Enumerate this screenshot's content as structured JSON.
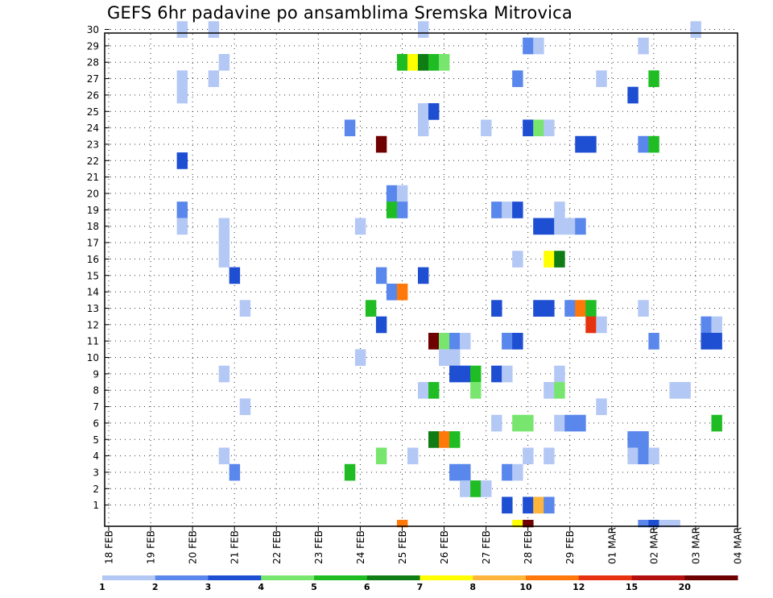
{
  "title": "GEFS 6hr padavine po ansamblima Sremska Mitrovica",
  "chart_data": {
    "type": "heatmap",
    "title": "GEFS 6hr padavine po ansamblima Sremska Mitrovica",
    "xlabel": "",
    "ylabel": "",
    "x_ticks": [
      "18 FEB",
      "19 FEB",
      "20 FEB",
      "21 FEB",
      "22 FEB",
      "23 FEB",
      "24 FEB",
      "25 FEB",
      "26 FEB",
      "27 FEB",
      "28 FEB",
      "29 FEB",
      "01 MAR",
      "02 MAR",
      "03 MAR",
      "04 MAR"
    ],
    "x_range_days": [
      0,
      15
    ],
    "y_ticks": [
      1,
      2,
      3,
      4,
      5,
      6,
      7,
      8,
      9,
      10,
      11,
      12,
      13,
      14,
      15,
      16,
      17,
      18,
      19,
      20,
      21,
      22,
      23,
      24,
      25,
      26,
      27,
      28,
      29,
      30
    ],
    "ylim": [
      0,
      30
    ],
    "grid": true,
    "colorbar": {
      "labels": [
        "1",
        "2",
        "3",
        "4",
        "5",
        "6",
        "7",
        "8",
        "10",
        "12",
        "15",
        "20"
      ],
      "colors": [
        "#b4c8f5",
        "#5a87eb",
        "#1e4ed2",
        "#78e66e",
        "#1fbd23",
        "#0f7d14",
        "#ffff00",
        "#ffb43c",
        "#ff780a",
        "#e6320f",
        "#b40f0f",
        "#6e0000"
      ]
    },
    "cells": [
      {
        "date": "19 FEB 18z",
        "member": 30,
        "precip": 1
      },
      {
        "date": "20 FEB 12z",
        "member": 30,
        "precip": 1
      },
      {
        "date": "25 FEB 12z",
        "member": 30,
        "precip": 1
      },
      {
        "date": "03 MAR 00z",
        "member": 30,
        "precip": 1
      },
      {
        "date": "28 FEB 00z",
        "member": 29,
        "precip": 2
      },
      {
        "date": "28 FEB 06z",
        "member": 29,
        "precip": 1
      },
      {
        "date": "01 MAR 18z",
        "member": 29,
        "precip": 1
      },
      {
        "date": "20 FEB 18z",
        "member": 28,
        "precip": 1
      },
      {
        "date": "25 FEB 00z",
        "member": 28,
        "precip": 5
      },
      {
        "date": "25 FEB 06z",
        "member": 28,
        "precip": 7
      },
      {
        "date": "25 FEB 12z",
        "member": 28,
        "precip": 6
      },
      {
        "date": "25 FEB 18z",
        "member": 28,
        "precip": 5
      },
      {
        "date": "26 FEB 00z",
        "member": 28,
        "precip": 4
      },
      {
        "date": "19 FEB 18z",
        "member": 27,
        "precip": 1
      },
      {
        "date": "20 FEB 12z",
        "member": 27,
        "precip": 1
      },
      {
        "date": "27 FEB 18z",
        "member": 27,
        "precip": 2
      },
      {
        "date": "29 FEB 18z",
        "member": 27,
        "precip": 1
      },
      {
        "date": "02 MAR 00z",
        "member": 27,
        "precip": 5
      },
      {
        "date": "19 FEB 18z",
        "member": 26,
        "precip": 1
      },
      {
        "date": "01 MAR 12z",
        "member": 26,
        "precip": 3
      },
      {
        "date": "25 FEB 12z",
        "member": 25,
        "precip": 1
      },
      {
        "date": "25 FEB 18z",
        "member": 25,
        "precip": 3
      },
      {
        "date": "23 FEB 18z",
        "member": 24,
        "precip": 2
      },
      {
        "date": "25 FEB 12z",
        "member": 24,
        "precip": 1
      },
      {
        "date": "27 FEB 00z",
        "member": 24,
        "precip": 1
      },
      {
        "date": "28 FEB 00z",
        "member": 24,
        "precip": 3
      },
      {
        "date": "28 FEB 06z",
        "member": 24,
        "precip": 4
      },
      {
        "date": "28 FEB 12z",
        "member": 24,
        "precip": 1
      },
      {
        "date": "24 FEB 12z",
        "member": 23,
        "precip": 20
      },
      {
        "date": "29 FEB 06z",
        "member": 23,
        "precip": 3
      },
      {
        "date": "29 FEB 12z",
        "member": 23,
        "precip": 3
      },
      {
        "date": "01 MAR 18z",
        "member": 23,
        "precip": 2
      },
      {
        "date": "02 MAR 00z",
        "member": 23,
        "precip": 5
      },
      {
        "date": "19 FEB 18z",
        "member": 22,
        "precip": 3
      },
      {
        "date": "24 FEB 18z",
        "member": 20,
        "precip": 2
      },
      {
        "date": "25 FEB 00z",
        "member": 20,
        "precip": 1
      },
      {
        "date": "19 FEB 18z",
        "member": 19,
        "precip": 2
      },
      {
        "date": "24 FEB 18z",
        "member": 19,
        "precip": 5
      },
      {
        "date": "25 FEB 00z",
        "member": 19,
        "precip": 2
      },
      {
        "date": "27 FEB 06z",
        "member": 19,
        "precip": 2
      },
      {
        "date": "27 FEB 12z",
        "member": 19,
        "precip": 1
      },
      {
        "date": "27 FEB 18z",
        "member": 19,
        "precip": 3
      },
      {
        "date": "28 FEB 18z",
        "member": 19,
        "precip": 1
      },
      {
        "date": "19 FEB 18z",
        "member": 18,
        "precip": 1
      },
      {
        "date": "20 FEB 18z",
        "member": 18,
        "precip": 1
      },
      {
        "date": "24 FEB 00z",
        "member": 18,
        "precip": 1
      },
      {
        "date": "28 FEB 06z",
        "member": 18,
        "precip": 3
      },
      {
        "date": "28 FEB 12z",
        "member": 18,
        "precip": 3
      },
      {
        "date": "28 FEB 18z",
        "member": 18,
        "precip": 1
      },
      {
        "date": "29 FEB 00z",
        "member": 18,
        "precip": 1
      },
      {
        "date": "29 FEB 06z",
        "member": 18,
        "precip": 2
      },
      {
        "date": "20 FEB 18z",
        "member": 17,
        "precip": 1
      },
      {
        "date": "20 FEB 18z",
        "member": 16,
        "precip": 1
      },
      {
        "date": "27 FEB 18z",
        "member": 16,
        "precip": 1
      },
      {
        "date": "28 FEB 12z",
        "member": 16,
        "precip": 7
      },
      {
        "date": "28 FEB 18z",
        "member": 16,
        "precip": 6
      },
      {
        "date": "21 FEB 00z",
        "member": 15,
        "precip": 3
      },
      {
        "date": "24 FEB 12z",
        "member": 15,
        "precip": 2
      },
      {
        "date": "25 FEB 12z",
        "member": 15,
        "precip": 3
      },
      {
        "date": "24 FEB 18z",
        "member": 14,
        "precip": 2
      },
      {
        "date": "25 FEB 00z",
        "member": 14,
        "precip": 10
      },
      {
        "date": "21 FEB 06z",
        "member": 13,
        "precip": 1
      },
      {
        "date": "24 FEB 06z",
        "member": 13,
        "precip": 5
      },
      {
        "date": "27 FEB 06z",
        "member": 13,
        "precip": 3
      },
      {
        "date": "28 FEB 06z",
        "member": 13,
        "precip": 3
      },
      {
        "date": "28 FEB 12z",
        "member": 13,
        "precip": 3
      },
      {
        "date": "29 FEB 00z",
        "member": 13,
        "precip": 2
      },
      {
        "date": "29 FEB 06z",
        "member": 13,
        "precip": 10
      },
      {
        "date": "29 FEB 12z",
        "member": 13,
        "precip": 5
      },
      {
        "date": "01 MAR 18z",
        "member": 13,
        "precip": 1
      },
      {
        "date": "24 FEB 12z",
        "member": 12,
        "precip": 3
      },
      {
        "date": "29 FEB 12z",
        "member": 12,
        "precip": 12
      },
      {
        "date": "29 FEB 18z",
        "member": 12,
        "precip": 1
      },
      {
        "date": "03 MAR 06z",
        "member": 12,
        "precip": 2
      },
      {
        "date": "03 MAR 12z",
        "member": 12,
        "precip": 1
      },
      {
        "date": "25 FEB 18z",
        "member": 11,
        "precip": 20
      },
      {
        "date": "26 FEB 00z",
        "member": 11,
        "precip": 4
      },
      {
        "date": "26 FEB 06z",
        "member": 11,
        "precip": 2
      },
      {
        "date": "26 FEB 12z",
        "member": 11,
        "precip": 1
      },
      {
        "date": "27 FEB 12z",
        "member": 11,
        "precip": 2
      },
      {
        "date": "27 FEB 18z",
        "member": 11,
        "precip": 3
      },
      {
        "date": "02 MAR 00z",
        "member": 11,
        "precip": 2
      },
      {
        "date": "03 MAR 06z",
        "member": 11,
        "precip": 3
      },
      {
        "date": "03 MAR 12z",
        "member": 11,
        "precip": 3
      },
      {
        "date": "24 FEB 00z",
        "member": 10,
        "precip": 1
      },
      {
        "date": "26 FEB 00z",
        "member": 10,
        "precip": 1
      },
      {
        "date": "26 FEB 06z",
        "member": 10,
        "precip": 1
      },
      {
        "date": "20 FEB 18z",
        "member": 9,
        "precip": 1
      },
      {
        "date": "26 FEB 06z",
        "member": 9,
        "precip": 3
      },
      {
        "date": "26 FEB 12z",
        "member": 9,
        "precip": 3
      },
      {
        "date": "26 FEB 18z",
        "member": 9,
        "precip": 5
      },
      {
        "date": "27 FEB 06z",
        "member": 9,
        "precip": 3
      },
      {
        "date": "27 FEB 12z",
        "member": 9,
        "precip": 1
      },
      {
        "date": "28 FEB 18z",
        "member": 9,
        "precip": 1
      },
      {
        "date": "25 FEB 12z",
        "member": 8,
        "precip": 1
      },
      {
        "date": "25 FEB 18z",
        "member": 8,
        "precip": 5
      },
      {
        "date": "26 FEB 18z",
        "member": 8,
        "precip": 4
      },
      {
        "date": "28 FEB 12z",
        "member": 8,
        "precip": 1
      },
      {
        "date": "28 FEB 18z",
        "member": 8,
        "precip": 4
      },
      {
        "date": "02 MAR 12z",
        "member": 8,
        "precip": 1
      },
      {
        "date": "02 MAR 18z",
        "member": 8,
        "precip": 1
      },
      {
        "date": "21 FEB 06z",
        "member": 7,
        "precip": 1
      },
      {
        "date": "29 FEB 18z",
        "member": 7,
        "precip": 1
      },
      {
        "date": "27 FEB 06z",
        "member": 6,
        "precip": 1
      },
      {
        "date": "27 FEB 18z",
        "member": 6,
        "precip": 4
      },
      {
        "date": "28 FEB 00z",
        "member": 6,
        "precip": 4
      },
      {
        "date": "28 FEB 18z",
        "member": 6,
        "precip": 1
      },
      {
        "date": "29 FEB 00z",
        "member": 6,
        "precip": 2
      },
      {
        "date": "29 FEB 06z",
        "member": 6,
        "precip": 2
      },
      {
        "date": "03 MAR 12z",
        "member": 6,
        "precip": 5
      },
      {
        "date": "25 FEB 18z",
        "member": 5,
        "precip": 6
      },
      {
        "date": "26 FEB 00z",
        "member": 5,
        "precip": 10
      },
      {
        "date": "26 FEB 06z",
        "member": 5,
        "precip": 5
      },
      {
        "date": "01 MAR 12z",
        "member": 5,
        "precip": 2
      },
      {
        "date": "01 MAR 18z",
        "member": 5,
        "precip": 2
      },
      {
        "date": "20 FEB 18z",
        "member": 4,
        "precip": 1
      },
      {
        "date": "24 FEB 12z",
        "member": 4,
        "precip": 4
      },
      {
        "date": "25 FEB 06z",
        "member": 4,
        "precip": 1
      },
      {
        "date": "28 FEB 00z",
        "member": 4,
        "precip": 1
      },
      {
        "date": "28 FEB 12z",
        "member": 4,
        "precip": 1
      },
      {
        "date": "01 MAR 12z",
        "member": 4,
        "precip": 1
      },
      {
        "date": "01 MAR 18z",
        "member": 4,
        "precip": 2
      },
      {
        "date": "02 MAR 00z",
        "member": 4,
        "precip": 1
      },
      {
        "date": "21 FEB 00z",
        "member": 3,
        "precip": 2
      },
      {
        "date": "23 FEB 18z",
        "member": 3,
        "precip": 5
      },
      {
        "date": "26 FEB 06z",
        "member": 3,
        "precip": 2
      },
      {
        "date": "26 FEB 12z",
        "member": 3,
        "precip": 2
      },
      {
        "date": "27 FEB 12z",
        "member": 3,
        "precip": 2
      },
      {
        "date": "27 FEB 18z",
        "member": 3,
        "precip": 1
      },
      {
        "date": "26 FEB 12z",
        "member": 2,
        "precip": 1
      },
      {
        "date": "26 FEB 18z",
        "member": 2,
        "precip": 5
      },
      {
        "date": "27 FEB 00z",
        "member": 2,
        "precip": 1
      },
      {
        "date": "27 FEB 12z",
        "member": 1,
        "precip": 3
      },
      {
        "date": "28 FEB 00z",
        "member": 1,
        "precip": 3
      },
      {
        "date": "28 FEB 06z",
        "member": 1,
        "precip": 8
      },
      {
        "date": "28 FEB 12z",
        "member": 1,
        "precip": 2
      },
      {
        "date": "25 FEB 00z",
        "member": 0,
        "precip": 10
      },
      {
        "date": "27 FEB 18z",
        "member": 0,
        "precip": 7
      },
      {
        "date": "28 FEB 00z",
        "member": 0,
        "precip": 20
      },
      {
        "date": "01 MAR 18z",
        "member": 0,
        "precip": 2
      },
      {
        "date": "02 MAR 00z",
        "member": 0,
        "precip": 3
      },
      {
        "date": "02 MAR 06z",
        "member": 0,
        "precip": 1
      },
      {
        "date": "02 MAR 12z",
        "member": 0,
        "precip": 1
      }
    ]
  }
}
